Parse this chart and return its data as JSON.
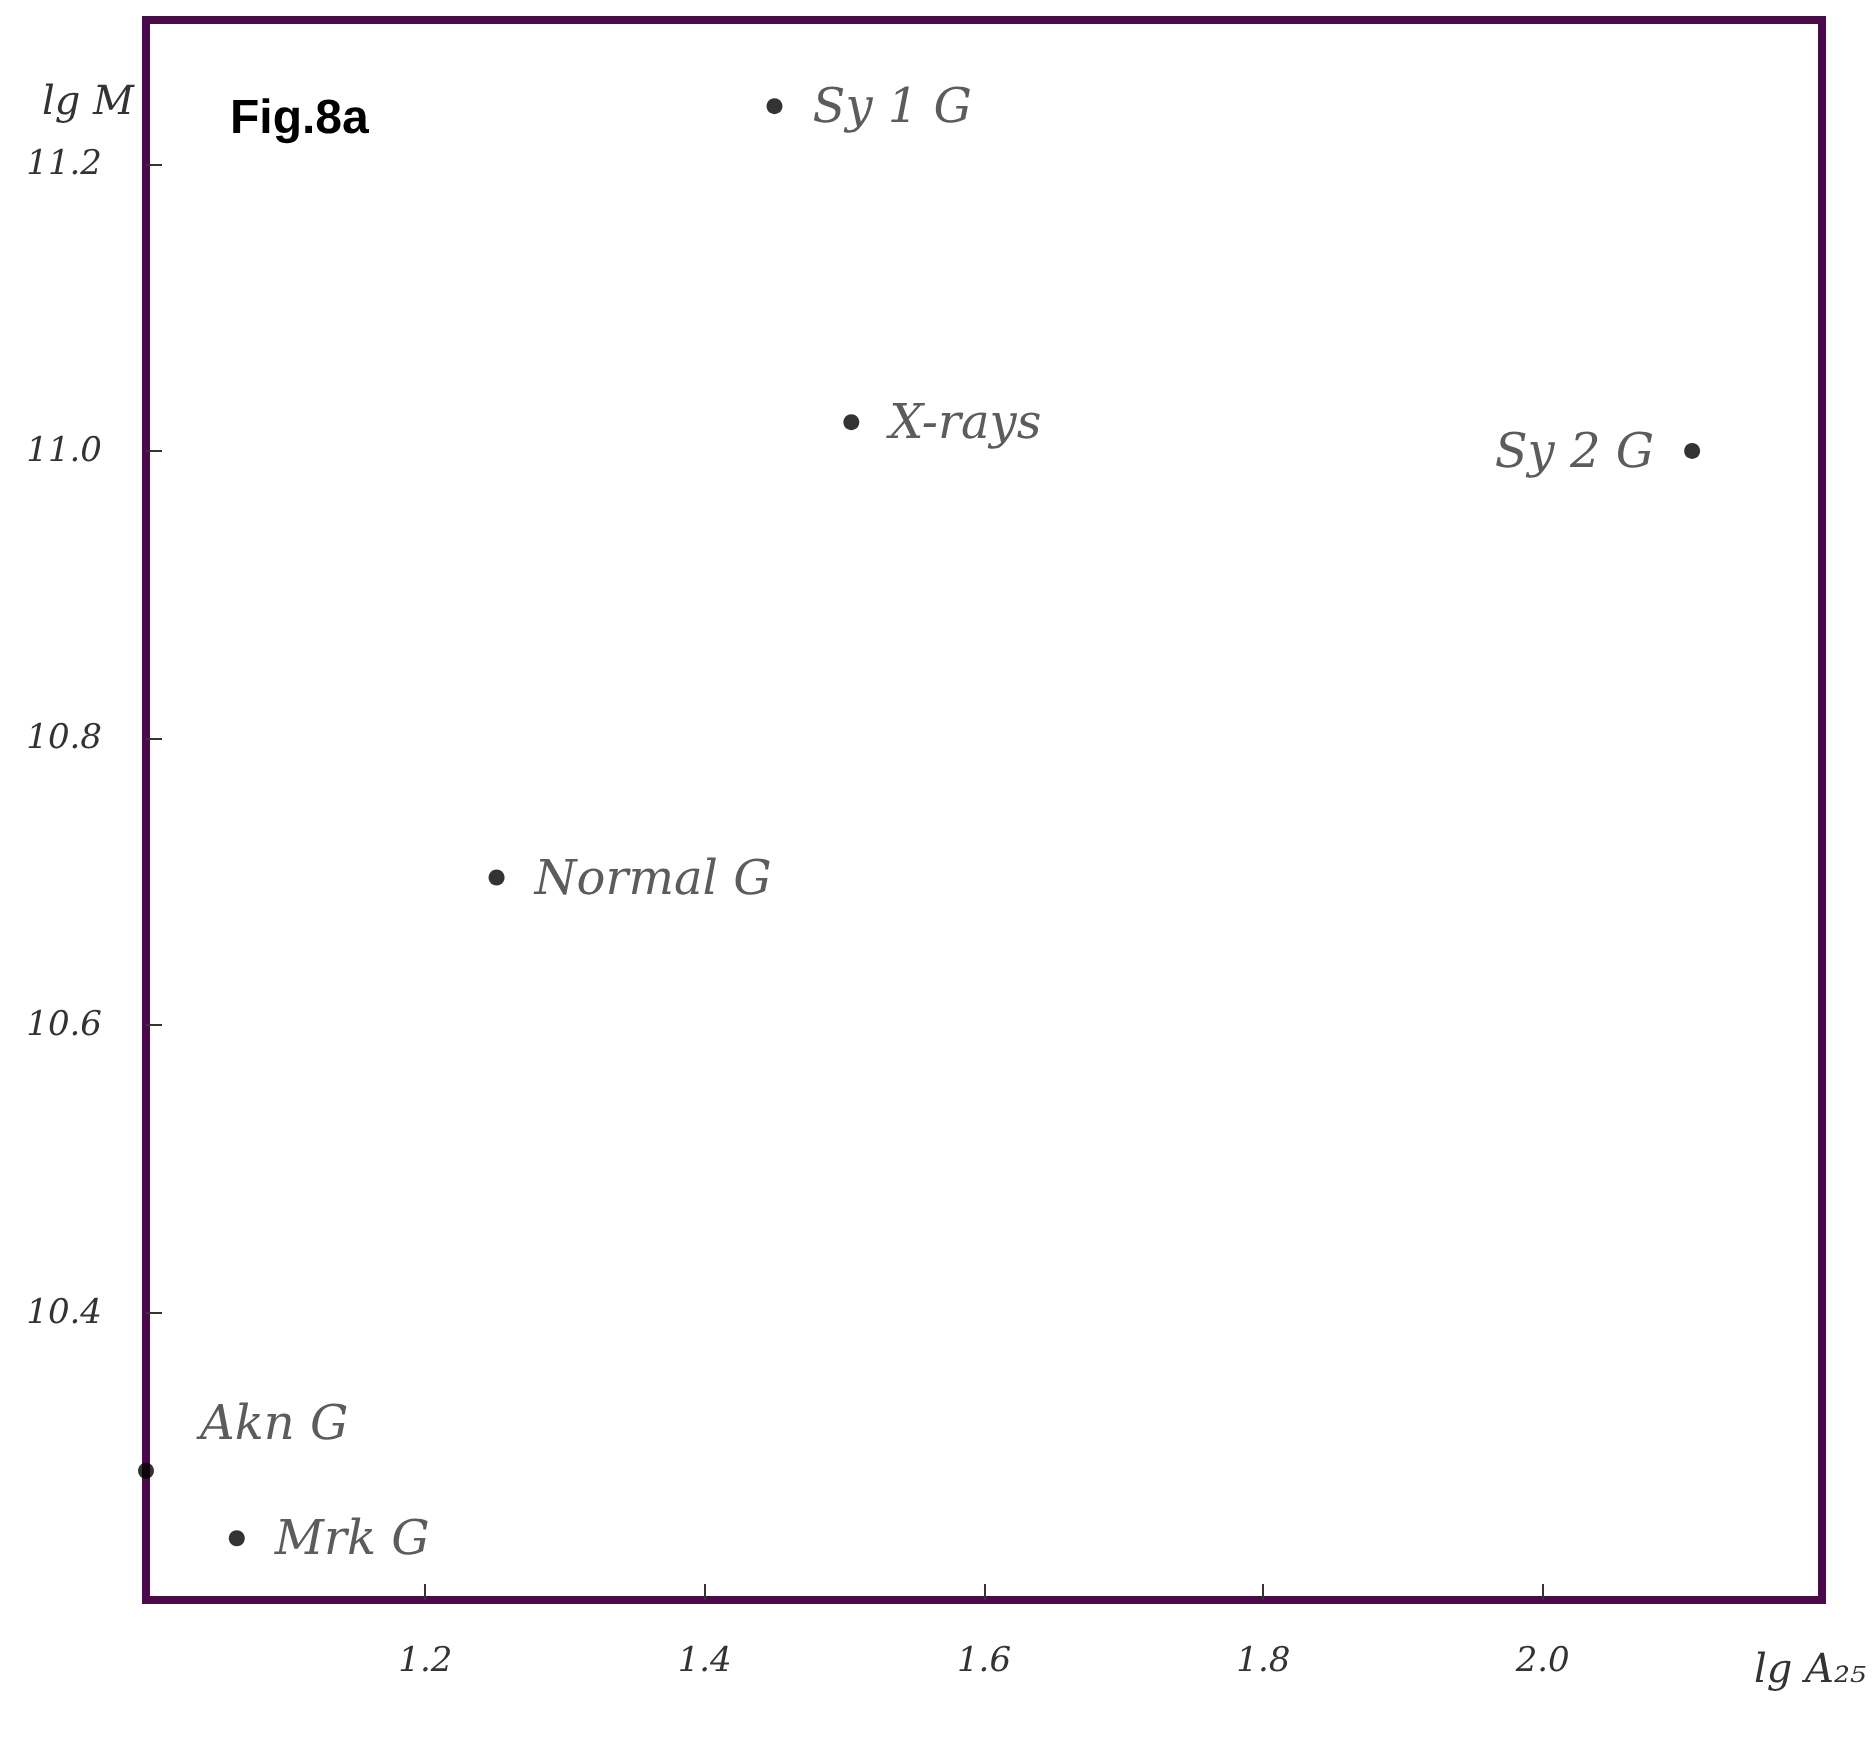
{
  "chart_data": {
    "type": "scatter",
    "title": "Fig.8a",
    "xlabel": "lg A₂₅",
    "ylabel": "lg M",
    "x": [
      1.45,
      1.505,
      2.107,
      1.251,
      1.0,
      1.065
    ],
    "values": [
      11.24,
      11.02,
      11.0,
      10.703,
      10.29,
      10.243
    ],
    "color": "#000000",
    "marker": "circle",
    "grid": false,
    "xlim": [
      1.0,
      2.2
    ],
    "xticks": [
      1.2,
      1.4,
      1.6,
      1.8,
      {
        "value": 2.0,
        "label": "2.0"
      }
    ],
    "ylim": [
      10.2,
      11.3
    ],
    "yticks": [
      10.4,
      10.6,
      10.8,
      {
        "value": 11.0,
        "label": "11.0"
      },
      11.2
    ],
    "annotations": [
      {
        "text": "Sy 1 G",
        "x": 1.45,
        "y": 11.24
      },
      {
        "text": "X-rays",
        "x": 1.505,
        "y": 11.02
      },
      {
        "text": "Sy 2 G",
        "x": 2.107,
        "y": 11.0
      },
      {
        "text": "Normal G",
        "x": 1.251,
        "y": 10.703
      },
      {
        "text": "Akn G",
        "x": 1.0,
        "y": 10.29
      },
      {
        "text": "Mrk G",
        "x": 1.065,
        "y": 10.243
      }
    ]
  }
}
